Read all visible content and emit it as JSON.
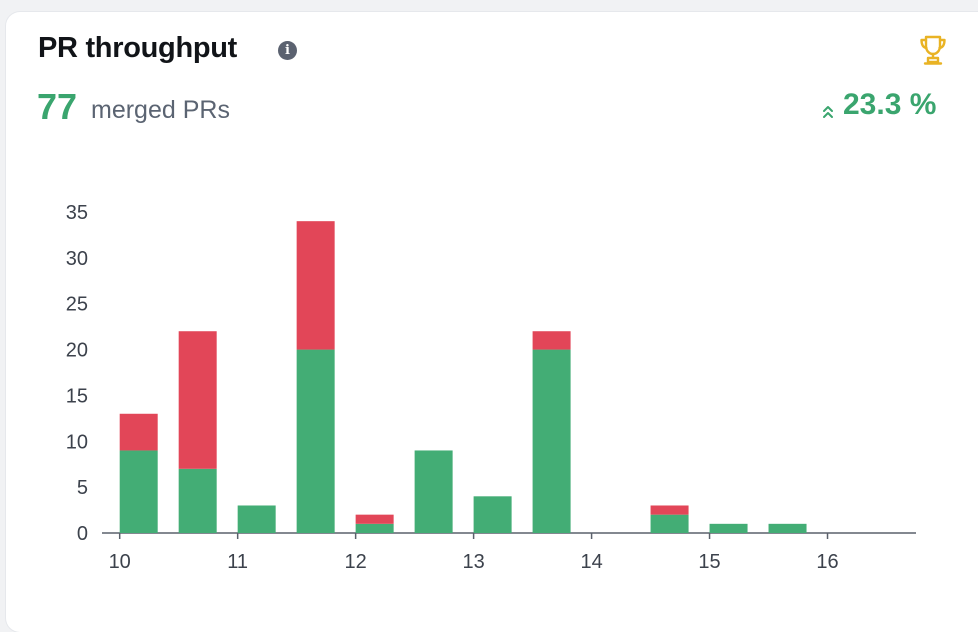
{
  "header": {
    "title": "PR throughput",
    "info_icon": "i",
    "merged_count": "77",
    "merged_label": "merged PRs",
    "trend": "23.3 %",
    "trend_icon": "double-chevron-up-icon",
    "trophy_icon": "trophy-icon"
  },
  "colors": {
    "merged": "#43ad75",
    "closed": "#e24658",
    "accent": "#3aa56e",
    "trophy": "#e9b324"
  },
  "chart_data": {
    "type": "bar",
    "stacked": true,
    "x": [
      10.0,
      10.5,
      11.0,
      11.5,
      12.0,
      12.5,
      13.0,
      13.5,
      14.0,
      14.5,
      15.0,
      15.5,
      16.0,
      16.5
    ],
    "series": [
      {
        "color": "#43ad75",
        "values": [
          9,
          7,
          3,
          20,
          1,
          9,
          4,
          20,
          0,
          2,
          1,
          1,
          0,
          0
        ]
      },
      {
        "color": "#e24658",
        "values": [
          4,
          15,
          0,
          14,
          1,
          0,
          0,
          2,
          0,
          1,
          0,
          0,
          0,
          0
        ]
      }
    ],
    "xticks": [
      "10",
      "11",
      "12",
      "13",
      "14",
      "15",
      "16"
    ],
    "yticks": [
      "0",
      "5",
      "10",
      "15",
      "20",
      "25",
      "30",
      "35"
    ],
    "ylim": [
      0,
      35
    ],
    "grid": false,
    "legend": "none"
  }
}
